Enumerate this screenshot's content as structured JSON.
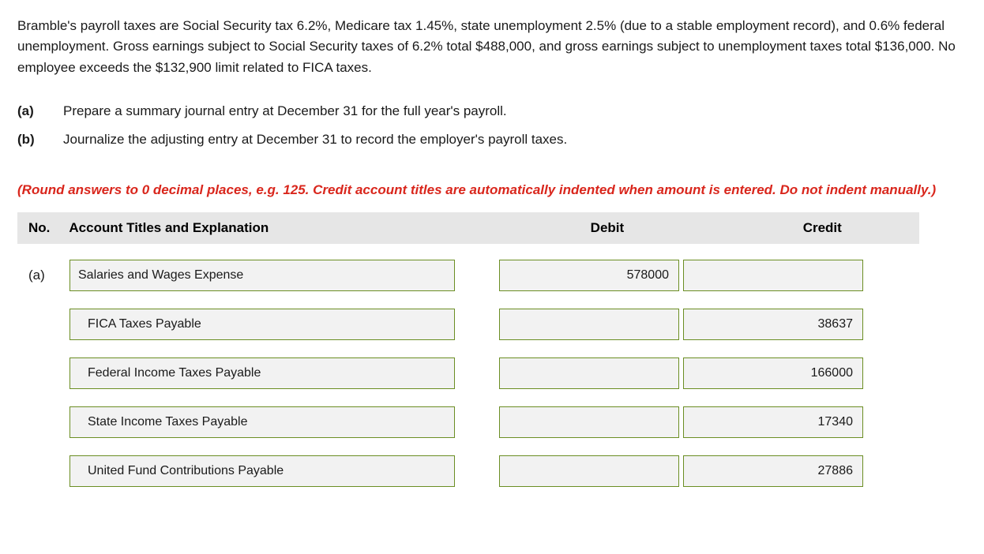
{
  "problem": {
    "intro": "Bramble's payroll taxes are Social Security tax 6.2%, Medicare tax 1.45%, state unemployment 2.5% (due to a stable employment record), and 0.6% federal unemployment. Gross earnings subject to Social Security taxes of 6.2% total $488,000, and gross earnings subject to unemployment taxes total $136,000. No employee exceeds the $132,900 limit related to FICA taxes.",
    "parts": [
      {
        "label": "(a)",
        "text": "Prepare a summary journal entry at December 31 for the full year's payroll."
      },
      {
        "label": "(b)",
        "text": "Journalize the adjusting entry at December 31 to record the employer's payroll taxes."
      }
    ],
    "instruction": "(Round answers to 0 decimal places, e.g. 125. Credit account titles are automatically indented when amount is entered. Do not indent manually.)"
  },
  "table": {
    "headers": {
      "no": "No.",
      "account": "Account Titles and Explanation",
      "debit": "Debit",
      "credit": "Credit"
    },
    "rows": [
      {
        "no": "(a)",
        "account": "Salaries and Wages Expense",
        "indent": false,
        "debit": "578000",
        "credit": ""
      },
      {
        "no": "",
        "account": "FICA Taxes Payable",
        "indent": true,
        "debit": "",
        "credit": "38637"
      },
      {
        "no": "",
        "account": "Federal Income Taxes Payable",
        "indent": true,
        "debit": "",
        "credit": "166000"
      },
      {
        "no": "",
        "account": "State Income Taxes Payable",
        "indent": true,
        "debit": "",
        "credit": "17340"
      },
      {
        "no": "",
        "account": "United Fund Contributions Payable",
        "indent": true,
        "debit": "",
        "credit": "27886"
      }
    ]
  },
  "style": {
    "instruction_color": "#d9261c",
    "header_bg": "#e6e6e6",
    "input_border": "#6b8e23",
    "input_bg": "#f2f2f2"
  }
}
